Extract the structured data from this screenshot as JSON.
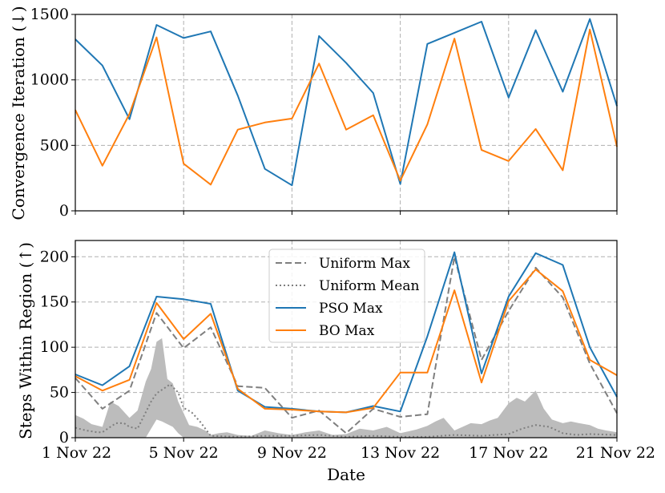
{
  "chart_data": [
    {
      "type": "line",
      "ylabel": "Convergence Iteration (↓)",
      "ylim": [
        0,
        1500
      ],
      "yticks": [
        "0",
        "500",
        "1000",
        "1500"
      ],
      "y_tick_values": [
        0,
        500,
        1000,
        1500
      ],
      "xlim": [
        1,
        21
      ],
      "grid": true,
      "series": [
        {
          "name": "PSO Max",
          "color": "#1f77b4",
          "x": [
            1,
            2,
            3,
            4,
            5,
            6,
            7,
            8,
            9,
            10,
            11,
            12,
            13,
            14,
            15,
            16,
            17,
            18,
            19,
            20,
            21
          ],
          "values": [
            1310,
            1110,
            700,
            1420,
            1320,
            1370,
            880,
            320,
            195,
            1335,
            1130,
            900,
            205,
            1275,
            1360,
            1445,
            865,
            1380,
            910,
            1465,
            800
          ]
        },
        {
          "name": "BO Max",
          "color": "#ff7f0e",
          "x": [
            1,
            2,
            3,
            4,
            5,
            6,
            7,
            8,
            9,
            10,
            11,
            12,
            13,
            14,
            15,
            16,
            17,
            18,
            19,
            20,
            21
          ],
          "values": [
            770,
            345,
            740,
            1325,
            360,
            200,
            620,
            675,
            705,
            1125,
            620,
            730,
            230,
            660,
            1315,
            465,
            380,
            625,
            310,
            1385,
            490
          ]
        }
      ]
    },
    {
      "type": "line",
      "xlabel": "Date",
      "ylabel": "Steps Within Region (↑)",
      "ylim": [
        0,
        218
      ],
      "yticks": [
        "0",
        "50",
        "100",
        "150",
        "200"
      ],
      "y_tick_values": [
        0,
        50,
        100,
        150,
        200
      ],
      "xlim": [
        1,
        21
      ],
      "x_tick_values": [
        1,
        5,
        9,
        13,
        17,
        21
      ],
      "x_tick_labels": [
        "1 Nov 22",
        "5 Nov 22",
        "9 Nov 22",
        "13 Nov 22",
        "17 Nov 22",
        "21 Nov 22"
      ],
      "grid": true,
      "legend": {
        "position": "top-center",
        "entries": [
          "Uniform Max",
          "Uniform Mean",
          "PSO Max",
          "BO Max"
        ]
      },
      "series": [
        {
          "name": "Uniform Max",
          "color": "#7f7f7f",
          "style": "dashed",
          "x": [
            1,
            2,
            3,
            4,
            5,
            6,
            7,
            8,
            9,
            10,
            11,
            12,
            13,
            14,
            15,
            16,
            17,
            18,
            19,
            20,
            21
          ],
          "values": [
            66,
            32,
            52,
            138,
            99,
            122,
            57,
            55,
            22,
            30,
            5,
            32,
            23,
            26,
            200,
            86,
            140,
            188,
            155,
            82,
            27
          ]
        },
        {
          "name": "Uniform Mean",
          "color": "#7f7f7f",
          "style": "dotted",
          "x": [
            1,
            1.4,
            1.8,
            2,
            2.5,
            2.8,
            3,
            3.3,
            3.8,
            4,
            4.2,
            4.5,
            4.8,
            5,
            5.3,
            5.6,
            6,
            7,
            8,
            9,
            10,
            11,
            12,
            13,
            14,
            15,
            16,
            17,
            17.5,
            18,
            18.5,
            19,
            19.5,
            20,
            21
          ],
          "values": [
            11,
            8,
            6,
            6,
            16,
            16,
            12,
            10,
            40,
            49,
            53,
            59,
            50,
            33,
            28,
            18,
            2,
            1,
            2,
            2,
            3,
            1,
            2,
            1,
            1,
            3,
            2,
            4,
            10,
            14,
            12,
            5,
            3,
            4,
            3
          ]
        },
        {
          "name": "PSO Max",
          "color": "#1f77b4",
          "style": "solid",
          "x": [
            1,
            2,
            3,
            4,
            5,
            6,
            7,
            8,
            9,
            10,
            11,
            12,
            13,
            14,
            15,
            16,
            17,
            18,
            19,
            20,
            21
          ],
          "values": [
            70,
            58,
            79,
            156,
            153,
            148,
            52,
            34,
            32,
            29,
            28,
            35,
            29,
            112,
            205,
            71,
            156,
            204,
            191,
            100,
            45
          ]
        },
        {
          "name": "BO Max",
          "color": "#ff7f0e",
          "style": "solid",
          "x": [
            1,
            2,
            3,
            4,
            5,
            6,
            7,
            8,
            9,
            10,
            11,
            12,
            13,
            14,
            15,
            16,
            17,
            18,
            19,
            20,
            21
          ],
          "values": [
            68,
            52,
            64,
            149,
            109,
            137,
            54,
            32,
            31,
            29,
            28,
            33,
            72,
            72,
            163,
            61,
            151,
            186,
            162,
            86,
            69
          ]
        }
      ],
      "shaded_band": {
        "color": "#bcbcbc",
        "x": [
          1,
          1.3,
          1.6,
          2,
          2.3,
          2.6,
          3,
          3.3,
          3.6,
          3.8,
          4,
          4.2,
          4.4,
          4.6,
          4.8,
          5,
          5.2,
          5.5,
          5.8,
          6,
          6.3,
          6.6,
          7,
          7.5,
          8,
          8.5,
          9,
          9.5,
          10,
          10.5,
          11,
          11.5,
          12,
          12.5,
          13,
          13.3,
          13.6,
          14,
          14.3,
          14.6,
          15,
          15.3,
          15.6,
          16,
          16.3,
          16.6,
          17,
          17.3,
          17.6,
          18,
          18.3,
          18.6,
          19,
          19.3,
          19.6,
          20,
          20.3,
          20.6,
          21
        ],
        "upper": [
          25,
          21,
          15,
          12,
          40,
          35,
          22,
          30,
          62,
          76,
          106,
          110,
          65,
          60,
          40,
          27,
          14,
          12,
          8,
          3,
          5,
          6,
          3,
          2,
          8,
          5,
          3,
          6,
          8,
          3,
          4,
          10,
          8,
          12,
          5,
          7,
          9,
          13,
          18,
          22,
          8,
          12,
          16,
          15,
          19,
          22,
          38,
          44,
          40,
          52,
          32,
          20,
          16,
          18,
          16,
          14,
          10,
          8,
          6
        ],
        "lower": [
          0,
          0,
          0,
          0,
          0,
          0,
          0,
          0,
          0,
          10,
          20,
          18,
          15,
          12,
          5,
          0,
          0,
          0,
          0,
          0,
          0,
          0,
          0,
          0,
          0,
          0,
          0,
          0,
          0,
          0,
          0,
          0,
          0,
          0,
          0,
          0,
          0,
          0,
          0,
          0,
          0,
          0,
          0,
          0,
          0,
          0,
          0,
          0,
          0,
          0,
          0,
          0,
          0,
          0,
          0,
          0,
          0,
          0,
          0
        ]
      }
    }
  ]
}
